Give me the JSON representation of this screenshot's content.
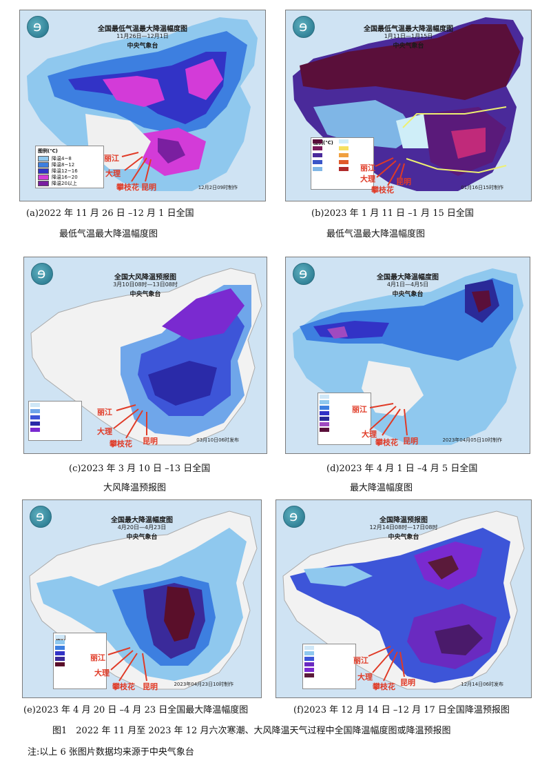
{
  "panels": [
    {
      "title": "全国最低气温最大降温幅度图",
      "date": "11月26日—12月1日",
      "agency": "中央气象台",
      "stamp": "12月2日09时制作",
      "legend_title": "图例(℃)",
      "legend": [
        {
          "label": "降温4~8",
          "color": "#8fc8ee"
        },
        {
          "label": "降温8~12",
          "color": "#3d7fe0"
        },
        {
          "label": "降温12~16",
          "color": "#3233c6"
        },
        {
          "label": "降温16~20",
          "color": "#d33bd8"
        },
        {
          "label": "降温20以上",
          "color": "#7a1fa0"
        }
      ],
      "cities": [
        "丽江",
        "大理",
        "攀枝花",
        "昆明"
      ],
      "caption_line1": "(a)2022 年 11 月 26 日 –12 月 1 日全国",
      "caption_line2": "最低气温最大降温幅度图"
    },
    {
      "title": "全国最低气温最大降温幅度图",
      "date": "1月11日—1月15日",
      "agency": "中央气象台",
      "stamp": "01月16日15时制作",
      "legend_title": "图例(℃)",
      "cities": [
        "丽江",
        "大理",
        "攀枝花",
        "昆明"
      ],
      "caption_line1": "(b)2023 年 1 月 11 日 –1 月 15 日全国",
      "caption_line2": "最低气温最大降温幅度图"
    },
    {
      "title": "全国大风降温预报图",
      "date": "3月10日08时—13日08时",
      "agency": "中央气象台",
      "stamp": "03月10日06时发布",
      "cities": [
        "丽江",
        "大理",
        "攀枝花",
        "昆明"
      ],
      "caption_line1": "(c)2023 年 3 月 10 日 –13 日全国",
      "caption_line2": "大风降温预报图"
    },
    {
      "title": "全国最大降温幅度图",
      "date": "4月1日—4月5日",
      "agency": "中央气象台",
      "stamp": "2023年04月05日10时制作",
      "cities": [
        "丽江",
        "大理",
        "攀枝花",
        "昆明"
      ],
      "caption_line1": "(d)2023 年 4 月 1 日 –4 月 5 日全国",
      "caption_line2": "最大降温幅度图"
    },
    {
      "title": "全国最大降温幅度图",
      "date": "4月20日—4月23日",
      "agency": "中央气象台",
      "stamp": "2023年04月23日10时制作",
      "legend_title": "图例",
      "cities": [
        "丽江",
        "大理",
        "攀枝花",
        "昆明"
      ],
      "caption_line1": "(e)2023 年 4 月 20 日 –4 月 23 日全国最大降温幅度图"
    },
    {
      "title": "全国降温预报图",
      "date": "12月14日08时—17日08时",
      "agency": "中央气象台",
      "stamp": "12月14日06时发布",
      "cities": [
        "丽江",
        "大理",
        "攀枝花",
        "昆明"
      ],
      "caption_line1": "(f)2023 年 12 月 14 日 –12 月 17 日全国降温预报图"
    }
  ],
  "figure_caption": "图1　2022 年 11 月至 2023 年 12 月六次寒潮、大风降温天气过程中全国降温幅度图或降温预报图",
  "note": "注:以上 6 张图片数据均来源于中央气象台",
  "colors": {
    "annotation_red": "#e03a26",
    "sea": "#cfe3f3",
    "land_grey": "#eeeeee"
  }
}
